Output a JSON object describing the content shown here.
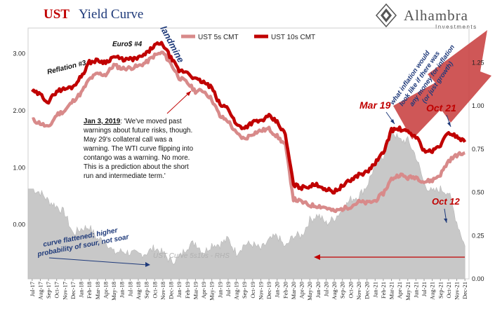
{
  "header": {
    "title_part1": "UST",
    "title_part2": "Yield Curve",
    "logo_name": "Alhambra",
    "logo_sub": "Investments"
  },
  "colors": {
    "ten_year": "#c00000",
    "five_year": "#d88a8a",
    "spread_fill": "#c8c8c8",
    "annotation_blue": "#1f3a7a",
    "annotation_red": "#c00000",
    "big_arrow": "#c84040",
    "title_red": "#c00000",
    "title_blue": "#1f3a7a"
  },
  "chart_data": {
    "type": "line",
    "legend_placement": "top-center",
    "grid": false,
    "x_labels": [
      "Jul-17",
      "Aug-17",
      "Sep-17",
      "Oct-17",
      "Nov-17",
      "Dec-17",
      "Jan-18",
      "Feb-18",
      "Mar-18",
      "Apr-18",
      "May-18",
      "Jun-18",
      "Jul-18",
      "Aug-18",
      "Sep-18",
      "Oct-18",
      "Nov-18",
      "Dec-18",
      "Jan-19",
      "Feb-19",
      "Mar-19",
      "Apr-19",
      "May-19",
      "Jun-19",
      "Jul-19",
      "Aug-19",
      "Sep-19",
      "Oct-19",
      "Nov-19",
      "Dec-19",
      "Jan-20",
      "Feb-20",
      "Mar-20",
      "Apr-20",
      "May-20",
      "Jun-20",
      "Jul-20",
      "Aug-20",
      "Sep-20",
      "Oct-20",
      "Nov-20",
      "Dec-20",
      "Jan-21",
      "Feb-21",
      "Mar-21",
      "Apr-21",
      "May-21",
      "Jun-21",
      "Jul-21",
      "Aug-21",
      "Sep-21",
      "Oct-21",
      "Nov-21",
      "Dec-21"
    ],
    "y_left": {
      "ticks": [
        "3.00",
        "2.00",
        "1.00",
        "0.00"
      ],
      "ylim": [
        -0.95,
        3.45
      ]
    },
    "y_right": {
      "ticks": [
        "1.25",
        "1.00",
        "0.75",
        "0.50",
        "0.25",
        "0.00"
      ],
      "ylim": [
        0,
        1.45
      ]
    },
    "series": [
      {
        "name": "UST 5s CMT",
        "axis": "left",
        "values": [
          1.84,
          1.78,
          1.7,
          1.93,
          2.0,
          2.17,
          2.31,
          2.55,
          2.65,
          2.63,
          2.8,
          2.74,
          2.75,
          2.78,
          2.85,
          2.97,
          3.02,
          2.82,
          2.58,
          2.49,
          2.34,
          2.35,
          2.2,
          1.9,
          1.82,
          1.6,
          1.5,
          1.6,
          1.65,
          1.68,
          1.55,
          1.4,
          0.45,
          0.4,
          0.34,
          0.33,
          0.3,
          0.23,
          0.28,
          0.32,
          0.4,
          0.38,
          0.42,
          0.55,
          0.8,
          0.88,
          0.82,
          0.84,
          0.75,
          0.78,
          0.88,
          1.12,
          1.22,
          1.26
        ]
      },
      {
        "name": "UST 10s CMT",
        "axis": "left",
        "values": [
          2.34,
          2.28,
          2.15,
          2.35,
          2.38,
          2.42,
          2.6,
          2.85,
          2.88,
          2.85,
          2.95,
          2.9,
          2.9,
          2.92,
          3.0,
          3.15,
          3.17,
          2.92,
          2.7,
          2.68,
          2.55,
          2.5,
          2.4,
          2.1,
          2.05,
          1.75,
          1.7,
          1.8,
          1.82,
          1.9,
          1.8,
          1.58,
          0.7,
          0.65,
          0.68,
          0.7,
          0.62,
          0.58,
          0.68,
          0.78,
          0.88,
          0.92,
          1.08,
          1.26,
          1.66,
          1.68,
          1.62,
          1.55,
          1.3,
          1.28,
          1.4,
          1.62,
          1.55,
          1.45
        ]
      },
      {
        "name": "UST Curve 5s10s - RHS",
        "axis": "right",
        "values": [
          0.52,
          0.5,
          0.45,
          0.42,
          0.38,
          0.26,
          0.29,
          0.3,
          0.23,
          0.22,
          0.15,
          0.16,
          0.15,
          0.14,
          0.15,
          0.18,
          0.15,
          0.1,
          0.12,
          0.19,
          0.21,
          0.15,
          0.2,
          0.2,
          0.23,
          0.15,
          0.2,
          0.2,
          0.17,
          0.22,
          0.25,
          0.18,
          0.25,
          0.25,
          0.34,
          0.37,
          0.32,
          0.35,
          0.4,
          0.46,
          0.48,
          0.54,
          0.66,
          0.71,
          0.86,
          0.8,
          0.8,
          0.71,
          0.55,
          0.5,
          0.52,
          0.5,
          0.33,
          0.19
        ]
      }
    ],
    "annotations": {
      "reflation": "Reflation #3",
      "euro": "Euro$ #4",
      "landmine": "landmine",
      "quote_date": "Jan 3, 2019",
      "quote_lines": [
        ": 'We've moved past",
        "warnings about future risks, though.",
        "May 29's collateral call was a",
        "warning. The WTI curve flipping into",
        "contango was a warning. No more.",
        "This is a prediction about the short",
        "run and intermediate term.'"
      ],
      "mar19": "Mar 19",
      "oct21": "Oct 21",
      "oct12": "Oct 12",
      "curve_flat_line1": "curve flattened; higher",
      "curve_flat_line2": "probability of sour, not soar",
      "spread_label": "UST Curve 5s10s - RHS",
      "inflation_lines": [
        "what inflation would",
        "look like if there was",
        "any money for inflation",
        "(or just growth)"
      ]
    }
  }
}
